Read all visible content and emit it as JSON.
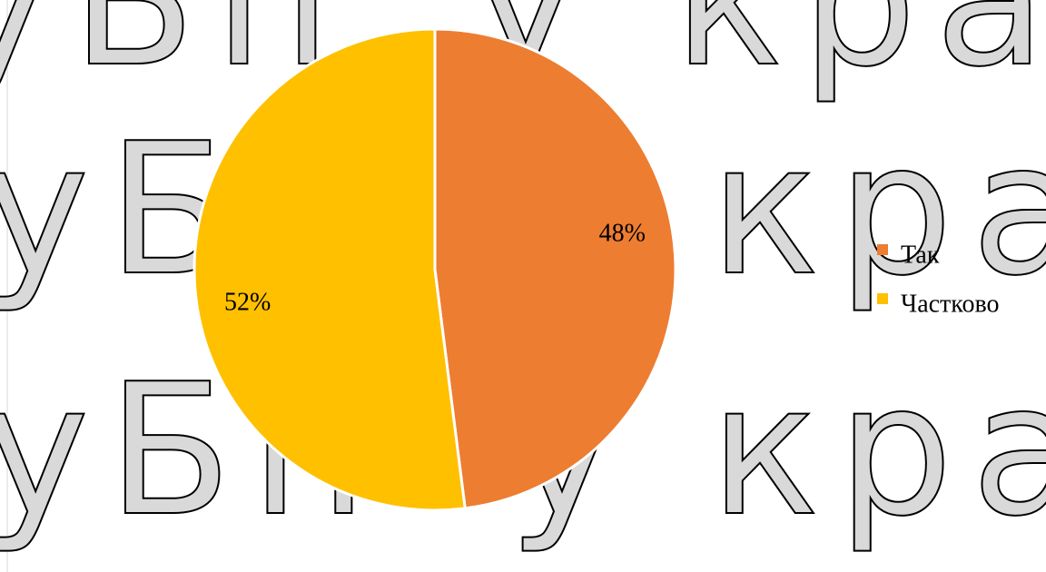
{
  "chart_data": {
    "type": "pie",
    "watermark": "уБіг у країні",
    "categories": [
      "Так",
      "Частково"
    ],
    "values": [
      48,
      52
    ],
    "value_labels": [
      "48%",
      "52%"
    ],
    "colors": [
      "#ed7d31",
      "#ffc000"
    ],
    "legend": "right"
  }
}
